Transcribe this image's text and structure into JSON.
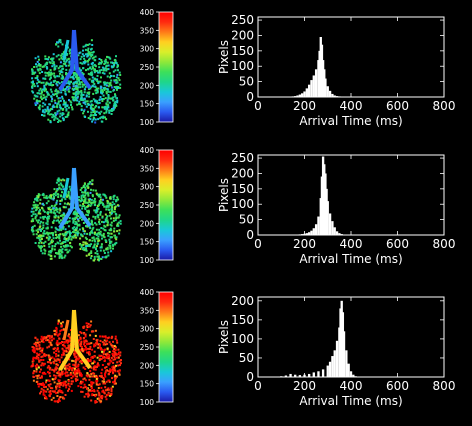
{
  "figure": {
    "background": "#000000",
    "foreground": "#ffffff"
  },
  "colorbar": {
    "ticks": [
      "400",
      "350",
      "300",
      "250",
      "200",
      "150",
      "100"
    ],
    "range": [
      100,
      400
    ],
    "colormap": [
      "#1a1aa6",
      "#2a5af0",
      "#3aa0ff",
      "#19c8d8",
      "#1fd68a",
      "#3ce05a",
      "#8fe83a",
      "#d9ef2a",
      "#ffd020",
      "#ff7a18",
      "#ff2a10",
      "#ff0000"
    ]
  },
  "chart_data": [
    {
      "type": "bar",
      "xlabel": "Arrival Time (ms)",
      "ylabel": "Pixels",
      "xticks": [
        "0",
        "200",
        "400",
        "600",
        "800"
      ],
      "yticks": [
        "0",
        "50",
        "100",
        "150",
        "200",
        "250"
      ],
      "xlim": [
        0,
        800
      ],
      "ylim": [
        0,
        260
      ],
      "grid": false,
      "x": [
        140,
        150,
        160,
        170,
        180,
        190,
        200,
        210,
        220,
        230,
        240,
        250,
        260,
        265,
        270,
        275,
        280,
        285,
        290,
        300,
        310,
        320,
        330,
        340,
        350,
        360
      ],
      "values": [
        1,
        2,
        3,
        5,
        8,
        12,
        18,
        28,
        40,
        55,
        70,
        90,
        120,
        150,
        195,
        170,
        120,
        90,
        60,
        35,
        20,
        10,
        5,
        3,
        2,
        1
      ],
      "lung_map": {
        "dominant_level": 210,
        "colorbar_ticks": [
          "400",
          "350",
          "300",
          "250",
          "200",
          "150",
          "100"
        ]
      }
    },
    {
      "type": "bar",
      "xlabel": "Arrival Time (ms)",
      "ylabel": "Pixels",
      "xticks": [
        "0",
        "200",
        "400",
        "600",
        "800"
      ],
      "yticks": [
        "0",
        "50",
        "100",
        "150",
        "200",
        "250"
      ],
      "xlim": [
        0,
        800
      ],
      "ylim": [
        0,
        260
      ],
      "grid": false,
      "x": [
        170,
        180,
        190,
        200,
        210,
        220,
        230,
        240,
        250,
        260,
        270,
        275,
        280,
        285,
        290,
        295,
        300,
        310,
        320,
        330,
        340,
        350,
        360,
        370
      ],
      "values": [
        1,
        2,
        3,
        4,
        6,
        9,
        14,
        22,
        35,
        60,
        120,
        190,
        255,
        230,
        200,
        150,
        110,
        70,
        45,
        25,
        12,
        6,
        3,
        1
      ],
      "lung_map": {
        "dominant_level": 230,
        "colorbar_ticks": [
          "400",
          "350",
          "300",
          "250",
          "200",
          "150",
          "100"
        ]
      }
    },
    {
      "type": "bar",
      "xlabel": "Arrival Time (ms)",
      "ylabel": "Pixels",
      "xticks": [
        "0",
        "200",
        "400",
        "600",
        "800"
      ],
      "yticks": [
        "0",
        "50",
        "100",
        "150",
        "200"
      ],
      "xlim": [
        0,
        800
      ],
      "ylim": [
        0,
        210
      ],
      "grid": false,
      "x": [
        100,
        120,
        140,
        160,
        180,
        200,
        220,
        240,
        260,
        280,
        300,
        310,
        320,
        330,
        340,
        350,
        355,
        360,
        365,
        370,
        380,
        390,
        400,
        410,
        420
      ],
      "values": [
        2,
        4,
        8,
        6,
        5,
        6,
        8,
        12,
        15,
        20,
        30,
        40,
        55,
        70,
        95,
        130,
        180,
        200,
        170,
        120,
        70,
        35,
        15,
        6,
        2
      ],
      "lung_map": {
        "dominant_level": 380,
        "colorbar_ticks": [
          "400",
          "350",
          "300",
          "250",
          "200",
          "150",
          "100"
        ]
      }
    }
  ]
}
